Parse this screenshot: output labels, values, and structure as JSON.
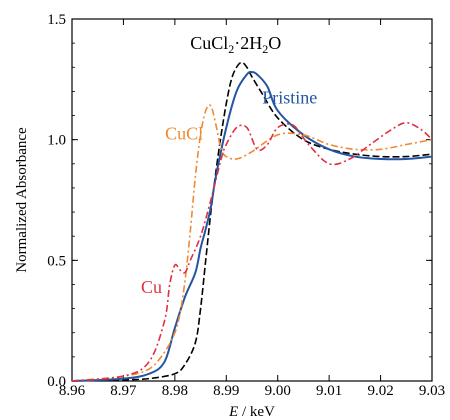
{
  "chart_data": {
    "type": "line",
    "title": "",
    "xlabel_italic": "E",
    "xlabel_unit": " / keV",
    "ylabel": "Normalized Absorbance",
    "xlim": [
      8.96,
      9.03
    ],
    "ylim": [
      0.0,
      1.5
    ],
    "xticks": [
      8.96,
      8.97,
      8.98,
      8.99,
      9.0,
      9.01,
      9.02,
      9.03
    ],
    "xtick_labels": [
      "8.96",
      "8.97",
      "8.98",
      "8.99",
      "9.00",
      "9.01",
      "9.02",
      "9.03"
    ],
    "yticks": [
      0.0,
      0.5,
      1.0,
      1.5
    ],
    "ytick_labels": [
      "0.0",
      "0.5",
      "1.0",
      "1.5"
    ],
    "grid": false,
    "legend": "none (inline labels)",
    "series": [
      {
        "name": "CuCl2·2H2O",
        "label_base": "CuCl",
        "label_sub1": "2",
        "label_mid": "·2H",
        "label_sub2": "2",
        "label_end": "O",
        "color": "#000000",
        "style": "dashed",
        "x": [
          8.96,
          8.97,
          8.975,
          8.98,
          8.982,
          8.984,
          8.985,
          8.986,
          8.987,
          8.988,
          8.989,
          8.99,
          8.991,
          8.992,
          8.993,
          8.994,
          8.995,
          8.997,
          9.0,
          9.005,
          9.01,
          9.015,
          9.02,
          9.025,
          9.03
        ],
        "values": [
          0.0,
          0.005,
          0.01,
          0.03,
          0.07,
          0.16,
          0.3,
          0.5,
          0.7,
          0.87,
          1.02,
          1.15,
          1.25,
          1.3,
          1.32,
          1.3,
          1.26,
          1.19,
          1.09,
          1.0,
          0.96,
          0.94,
          0.93,
          0.93,
          0.94
        ]
      },
      {
        "name": "Pristine",
        "color": "#2255a4",
        "style": "solid",
        "x": [
          8.96,
          8.97,
          8.975,
          8.978,
          8.98,
          8.982,
          8.984,
          8.985,
          8.986,
          8.987,
          8.988,
          8.99,
          8.992,
          8.994,
          8.995,
          8.996,
          8.998,
          9.0,
          9.005,
          9.01,
          9.015,
          9.02,
          9.025,
          9.03
        ],
        "values": [
          0.0,
          0.01,
          0.03,
          0.08,
          0.22,
          0.35,
          0.45,
          0.55,
          0.63,
          0.72,
          0.85,
          1.05,
          1.2,
          1.27,
          1.28,
          1.27,
          1.22,
          1.12,
          1.02,
          0.96,
          0.93,
          0.92,
          0.92,
          0.93
        ]
      },
      {
        "name": "CuCl",
        "color": "#f08a30",
        "style": "dash-dot",
        "x": [
          8.96,
          8.97,
          8.975,
          8.978,
          8.98,
          8.981,
          8.982,
          8.983,
          8.984,
          8.985,
          8.986,
          8.987,
          8.988,
          8.989,
          8.99,
          8.992,
          8.995,
          9.0,
          9.005,
          9.01,
          9.015,
          9.02,
          9.025,
          9.03
        ],
        "values": [
          0.0,
          0.02,
          0.05,
          0.12,
          0.2,
          0.28,
          0.42,
          0.62,
          0.85,
          1.02,
          1.12,
          1.14,
          1.06,
          0.96,
          0.93,
          0.92,
          0.95,
          1.02,
          1.02,
          0.98,
          0.96,
          0.96,
          0.98,
          1.0
        ]
      },
      {
        "name": "Cu",
        "color": "#e03040",
        "style": "dash-dot",
        "x": [
          8.96,
          8.97,
          8.975,
          8.978,
          8.979,
          8.98,
          8.981,
          8.982,
          8.983,
          8.985,
          8.987,
          8.989,
          8.99,
          8.992,
          8.994,
          8.996,
          8.998,
          9.0,
          9.003,
          9.006,
          9.01,
          9.014,
          9.018,
          9.022,
          9.025,
          9.028,
          9.03
        ],
        "values": [
          0.0,
          0.02,
          0.08,
          0.25,
          0.4,
          0.48,
          0.46,
          0.45,
          0.5,
          0.6,
          0.75,
          0.92,
          0.98,
          1.05,
          1.05,
          0.96,
          0.98,
          1.05,
          1.06,
          0.98,
          0.9,
          0.92,
          0.98,
          1.04,
          1.07,
          1.04,
          1.0
        ]
      }
    ],
    "labels": [
      {
        "series": "CuCl2·2H2O",
        "x": 8.983,
        "y": 1.375,
        "anchor": "start"
      },
      {
        "series": "Pristine",
        "x": 8.997,
        "y": 1.15,
        "anchor": "start"
      },
      {
        "series": "CuCl",
        "x": 8.9855,
        "y": 1.0,
        "anchor": "end"
      },
      {
        "series": "Cu",
        "x": 8.9775,
        "y": 0.365,
        "anchor": "end"
      }
    ]
  }
}
